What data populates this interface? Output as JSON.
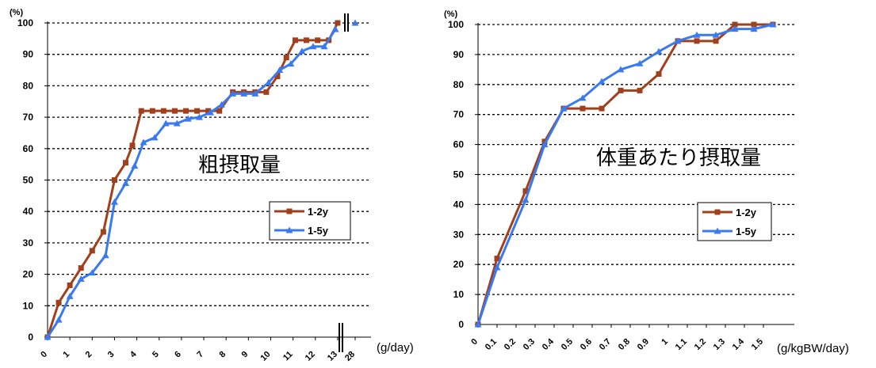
{
  "chart_data": [
    {
      "type": "line",
      "annotation": "粗摂取量",
      "y_unit": "(%)",
      "x_unit": "(g/day)",
      "ylim": [
        0,
        100
      ],
      "yticks": [
        0,
        10,
        20,
        30,
        40,
        50,
        60,
        70,
        80,
        90,
        100
      ],
      "x_ticks": [
        "0",
        "1",
        "2",
        "3",
        "4",
        "5",
        "6",
        "7",
        "8",
        "9",
        "10",
        "11",
        "12",
        "13",
        "28"
      ],
      "grid": true,
      "axis_break": "between 13 and 28",
      "legend_position": "right-middle",
      "series": [
        {
          "name": "1-2y",
          "color": "#a0401c",
          "marker": "square",
          "points": [
            [
              0,
              0
            ],
            [
              0.5,
              11
            ],
            [
              1,
              16.5
            ],
            [
              1.5,
              22
            ],
            [
              2,
              27.5
            ],
            [
              2.5,
              33.5
            ],
            [
              3,
              50
            ],
            [
              3.5,
              55.5
            ],
            [
              3.8,
              61
            ],
            [
              4.2,
              72
            ],
            [
              4.7,
              72
            ],
            [
              5.2,
              72
            ],
            [
              5.7,
              72
            ],
            [
              6.2,
              72
            ],
            [
              6.7,
              72
            ],
            [
              7.2,
              72
            ],
            [
              7.7,
              72
            ],
            [
              8.3,
              78
            ],
            [
              8.8,
              78
            ],
            [
              9.3,
              78
            ],
            [
              9.8,
              78
            ],
            [
              10.3,
              83
            ],
            [
              10.7,
              89
            ],
            [
              11.1,
              94.5
            ],
            [
              11.6,
              94.5
            ],
            [
              12.1,
              94.5
            ],
            [
              12.6,
              94.5
            ],
            [
              13,
              100
            ]
          ]
        },
        {
          "name": "1-5y",
          "color": "#3a7af0",
          "marker": "triangle",
          "points": [
            [
              0,
              0
            ],
            [
              0.5,
              5.5
            ],
            [
              1,
              13
            ],
            [
              1.5,
              18.5
            ],
            [
              2,
              20.5
            ],
            [
              2.6,
              26
            ],
            [
              3,
              43
            ],
            [
              3.5,
              49
            ],
            [
              3.9,
              54.5
            ],
            [
              4.3,
              62
            ],
            [
              4.8,
              63.5
            ],
            [
              5.3,
              68
            ],
            [
              5.8,
              68
            ],
            [
              6.3,
              69.5
            ],
            [
              6.8,
              70
            ],
            [
              7.3,
              71.5
            ],
            [
              7.8,
              74
            ],
            [
              8.3,
              77.5
            ],
            [
              8.8,
              77.5
            ],
            [
              9.3,
              77.5
            ],
            [
              9.9,
              81
            ],
            [
              10.4,
              85
            ],
            [
              10.9,
              87
            ],
            [
              11.4,
              91
            ],
            [
              11.9,
              92.5
            ],
            [
              12.4,
              92.5
            ],
            [
              12.9,
              98
            ],
            [
              28,
              100
            ]
          ]
        }
      ]
    },
    {
      "type": "line",
      "annotation": "体重あたり摂取量",
      "y_unit": "(%)",
      "x_unit": "(g/kgBW/day)",
      "ylim": [
        0,
        100
      ],
      "yticks": [
        0,
        10,
        20,
        30,
        40,
        50,
        60,
        70,
        80,
        90,
        100
      ],
      "x_ticks": [
        "0",
        "0.1",
        "0.2",
        "0.3",
        "0.4",
        "0.5",
        "0.6",
        "0.7",
        "0.8",
        "0.9",
        "1",
        "1.1",
        "1.2",
        "1.3",
        "1.4",
        "1.5"
      ],
      "grid": true,
      "legend_position": "right-middle",
      "series": [
        {
          "name": "1-2y",
          "color": "#a0401c",
          "marker": "square",
          "points": [
            [
              0,
              0
            ],
            [
              0.1,
              22
            ],
            [
              0.25,
              44.5
            ],
            [
              0.35,
              61
            ],
            [
              0.45,
              72
            ],
            [
              0.55,
              72
            ],
            [
              0.65,
              72
            ],
            [
              0.75,
              78
            ],
            [
              0.85,
              78
            ],
            [
              0.95,
              83.5
            ],
            [
              1.05,
              94.5
            ],
            [
              1.15,
              94.5
            ],
            [
              1.25,
              94.5
            ],
            [
              1.35,
              100
            ],
            [
              1.45,
              100
            ],
            [
              1.55,
              100
            ]
          ]
        },
        {
          "name": "1-5y",
          "color": "#3a7af0",
          "marker": "triangle",
          "points": [
            [
              0,
              0
            ],
            [
              0.1,
              19
            ],
            [
              0.25,
              41.5
            ],
            [
              0.35,
              60
            ],
            [
              0.45,
              72
            ],
            [
              0.55,
              75.5
            ],
            [
              0.65,
              81
            ],
            [
              0.75,
              85
            ],
            [
              0.85,
              87
            ],
            [
              0.95,
              91
            ],
            [
              1.05,
              94.5
            ],
            [
              1.15,
              96.5
            ],
            [
              1.25,
              96.5
            ],
            [
              1.35,
              98.5
            ],
            [
              1.45,
              98.5
            ],
            [
              1.55,
              100
            ]
          ]
        }
      ]
    }
  ]
}
